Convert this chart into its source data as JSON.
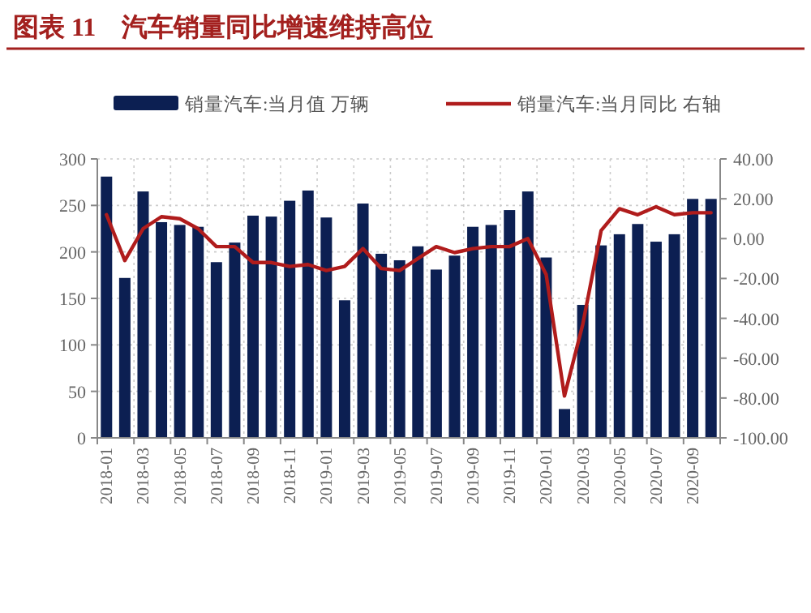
{
  "chart_data": {
    "type": "bar",
    "title": "图表 11　汽车销量同比增速维持高位",
    "categories": [
      "2018-01",
      null,
      "2018-03",
      null,
      "2018-05",
      null,
      "2018-07",
      null,
      "2018-09",
      null,
      "2018-11",
      null,
      "2019-01",
      null,
      "2019-03",
      null,
      "2019-05",
      null,
      "2019-07",
      null,
      "2019-09",
      null,
      "2019-11",
      null,
      "2020-01",
      null,
      "2020-03",
      null,
      "2020-05",
      null,
      "2020-07",
      null,
      "2020-09",
      null
    ],
    "series": [
      {
        "name": "销量汽车:当月值 万辆",
        "color": "#0c1f52",
        "values": [
          281,
          172,
          265,
          232,
          229,
          227,
          189,
          210,
          239,
          238,
          255,
          266,
          237,
          148,
          252,
          198,
          191,
          206,
          181,
          196,
          227,
          229,
          245,
          265,
          194,
          31,
          143,
          207,
          219,
          230,
          211,
          219,
          257,
          257
        ]
      },
      {
        "name": "销量汽车:当月同比 右轴",
        "type": "line",
        "axis": "y2",
        "color": "#b01c1c",
        "values": [
          12,
          -11,
          5,
          11,
          10,
          5,
          -4,
          -4,
          -12,
          -12,
          -14,
          -13,
          -16,
          -14,
          -5,
          -15,
          -16,
          -10,
          -4,
          -7,
          -5,
          -4,
          -4,
          0,
          -18,
          -79,
          -43,
          4,
          15,
          12,
          16,
          12,
          13,
          13
        ]
      }
    ],
    "ylim": [
      0,
      300
    ],
    "yticks": [
      0,
      50,
      100,
      150,
      200,
      250,
      300
    ],
    "y2lim": [
      -100,
      40
    ],
    "y2ticks": [
      {
        "value": -100,
        "label": "-100.00"
      },
      {
        "value": -80,
        "label": "-80.00"
      },
      {
        "value": -60,
        "label": "-60.00"
      },
      {
        "value": -40,
        "label": "-40.00"
      },
      {
        "value": -20,
        "label": "-20.00"
      },
      {
        "value": 0,
        "label": "0.00"
      },
      {
        "value": 20,
        "label": "20.00"
      },
      {
        "value": 40,
        "label": "40.00"
      }
    ],
    "grid": true,
    "legend": "top"
  }
}
